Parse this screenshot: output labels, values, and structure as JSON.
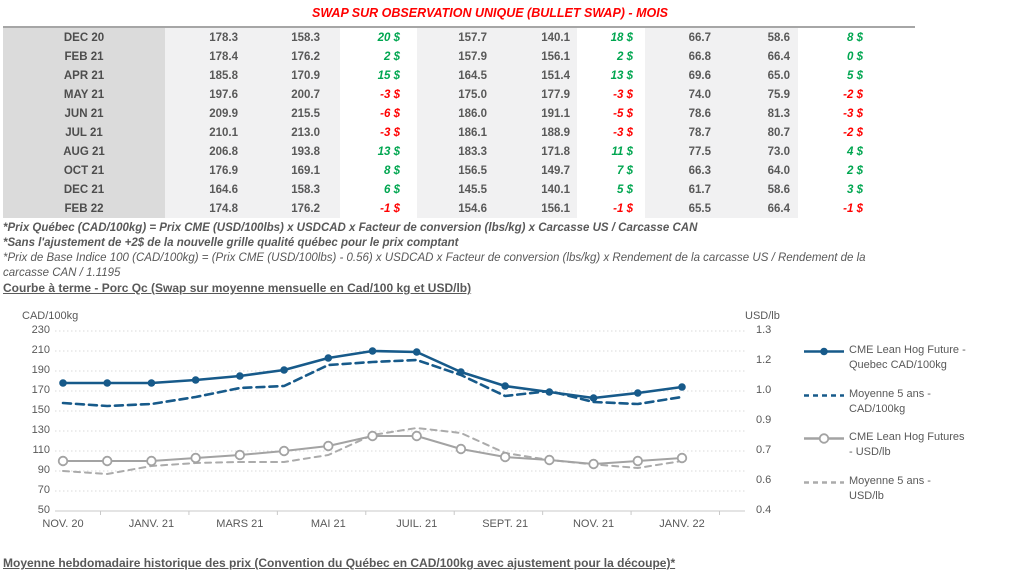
{
  "title": "SWAP SUR OBSERVATION UNIQUE (BULLET SWAP) - MOIS",
  "table": {
    "diff_positive_color": "#00a650",
    "diff_negative_color": "#ff0000",
    "rows": [
      {
        "month": "DEC 20",
        "values": [
          "178.3",
          "158.3",
          "20 $",
          "157.7",
          "140.1",
          "18 $",
          "66.7",
          "58.6",
          "8 $"
        ]
      },
      {
        "month": "FEB 21",
        "values": [
          "178.4",
          "176.2",
          "2 $",
          "157.9",
          "156.1",
          "2 $",
          "66.8",
          "66.4",
          "0 $"
        ]
      },
      {
        "month": "APR 21",
        "values": [
          "185.8",
          "170.9",
          "15 $",
          "164.5",
          "151.4",
          "13 $",
          "69.6",
          "65.0",
          "5 $"
        ]
      },
      {
        "month": "MAY 21",
        "values": [
          "197.6",
          "200.7",
          "-3 $",
          "175.0",
          "177.9",
          "-3 $",
          "74.0",
          "75.9",
          "-2 $"
        ]
      },
      {
        "month": "JUN 21",
        "values": [
          "209.9",
          "215.5",
          "-6 $",
          "186.0",
          "191.1",
          "-5 $",
          "78.6",
          "81.3",
          "-3 $"
        ]
      },
      {
        "month": "JUL 21",
        "values": [
          "210.1",
          "213.0",
          "-3 $",
          "186.1",
          "188.9",
          "-3 $",
          "78.7",
          "80.7",
          "-2 $"
        ]
      },
      {
        "month": "AUG 21",
        "values": [
          "206.8",
          "193.8",
          "13 $",
          "183.3",
          "171.8",
          "11 $",
          "77.5",
          "73.0",
          "4 $"
        ]
      },
      {
        "month": "OCT 21",
        "values": [
          "176.9",
          "169.1",
          "8 $",
          "156.5",
          "149.7",
          "7 $",
          "66.3",
          "64.0",
          "2 $"
        ]
      },
      {
        "month": "DEC 21",
        "values": [
          "164.6",
          "158.3",
          "6 $",
          "145.5",
          "140.1",
          "5 $",
          "61.7",
          "58.6",
          "3 $"
        ]
      },
      {
        "month": "FEB 22",
        "values": [
          "174.8",
          "176.2",
          "-1 $",
          "154.6",
          "156.1",
          "-1 $",
          "65.5",
          "66.4",
          "-1 $"
        ]
      }
    ]
  },
  "footnotes": [
    {
      "text": "*Prix Québec (CAD/100kg) = Prix CME (USD/100lbs) x USDCAD x Facteur de conversion (lbs/kg) x Carcasse US / Carcasse CAN",
      "bold": true
    },
    {
      "text": "*Sans l'ajustement de +2$ de la nouvelle grille qualité québec pour le prix comptant",
      "bold": true
    },
    {
      "text": "*Prix de Base Indice 100 (CAD/100kg) = (Prix CME (USD/100lbs) - 0.56) x USDCAD x Facteur de conversion (lbs/kg) x Rendement de la carcasse US / Rendement de la",
      "bold": false
    },
    {
      "text": "carcasse CAN / 1.1195",
      "bold": false
    }
  ],
  "chart_heading": "Courbe à terme - Porc Qc (Swap sur moyenne mensuelle en Cad/100 kg et USD/lb)",
  "bottom_heading": "Moyenne hebdomadaire historique des prix (Convention du Québec en CAD/100kg avec ajustement pour la découpe)*",
  "chart_data": {
    "type": "line",
    "title": "Courbe à terme - Porc Qc (Swap sur moyenne mensuelle en Cad/100 kg et USD/lb)",
    "grid": "horizontal-dotted",
    "legend_position": "right",
    "x_categories": [
      "nov-20",
      "déc-20",
      "janv-21",
      "févr-21",
      "mars-21",
      "avr-21",
      "mai-21",
      "juin-21",
      "juil-21",
      "août-21",
      "sept-21",
      "oct-21",
      "nov-21",
      "déc-21",
      "janv-22"
    ],
    "x_labels": [
      "NOV. 20",
      "JANV. 21",
      "MARS 21",
      "MAI 21",
      "JUIL. 21",
      "SEPT. 21",
      "NOV. 21",
      "JANV. 22"
    ],
    "left_axis": {
      "title": "CAD/100kg",
      "min": 50,
      "max": 230,
      "step": 20,
      "tick_labels": [
        "230",
        "210",
        "190",
        "170",
        "150",
        "130",
        "110",
        "90",
        "70",
        "50"
      ]
    },
    "right_axis": {
      "title": "USD/lb",
      "min": 0.4,
      "max": 1.3,
      "tick_labels": [
        "1.3",
        "1.2",
        "1.0",
        "0.9",
        "0.7",
        "0.6",
        "0.4"
      ]
    },
    "series": [
      {
        "name": "CME Lean Hog Future - Quebec CAD/100kg",
        "label_lines": [
          "CME Lean Hog Future -",
          "Quebec CAD/100kg"
        ],
        "axis": "left",
        "style": "solid",
        "marker": "filled",
        "color": "#175a8a",
        "values": [
          178,
          178,
          178,
          181,
          185,
          191,
          203,
          210,
          209,
          189,
          175,
          169,
          163,
          168,
          174
        ]
      },
      {
        "name": "Moyenne 5 ans - CAD/100kg",
        "label_lines": [
          "Moyenne 5 ans -",
          "CAD/100kg"
        ],
        "axis": "left",
        "style": "dashed",
        "marker": "none",
        "color": "#175a8a",
        "values": [
          158,
          155,
          157,
          164,
          173,
          175,
          196,
          199,
          201,
          186,
          165,
          170,
          159,
          157,
          164
        ]
      },
      {
        "name": "CME Lean Hog Futures - USD/lb",
        "label_lines": [
          "CME Lean Hog Futures",
          "- USD/lb"
        ],
        "axis": "right",
        "style": "solid",
        "marker": "open",
        "color": "#a3a3a3",
        "values": [
          0.65,
          0.65,
          0.65,
          0.665,
          0.68,
          0.7,
          0.725,
          0.775,
          0.775,
          0.71,
          0.67,
          0.655,
          0.635,
          0.65,
          0.665
        ]
      },
      {
        "name": "Moyenne 5 ans - USD/lb",
        "label_lines": [
          "Moyenne 5 ans -",
          "USD/lb"
        ],
        "axis": "right",
        "style": "dashed",
        "marker": "none",
        "color": "#ababab",
        "values": [
          0.6,
          0.585,
          0.625,
          0.64,
          0.645,
          0.645,
          0.68,
          0.78,
          0.815,
          0.79,
          0.69,
          0.655,
          0.633,
          0.615,
          0.65
        ]
      }
    ]
  }
}
